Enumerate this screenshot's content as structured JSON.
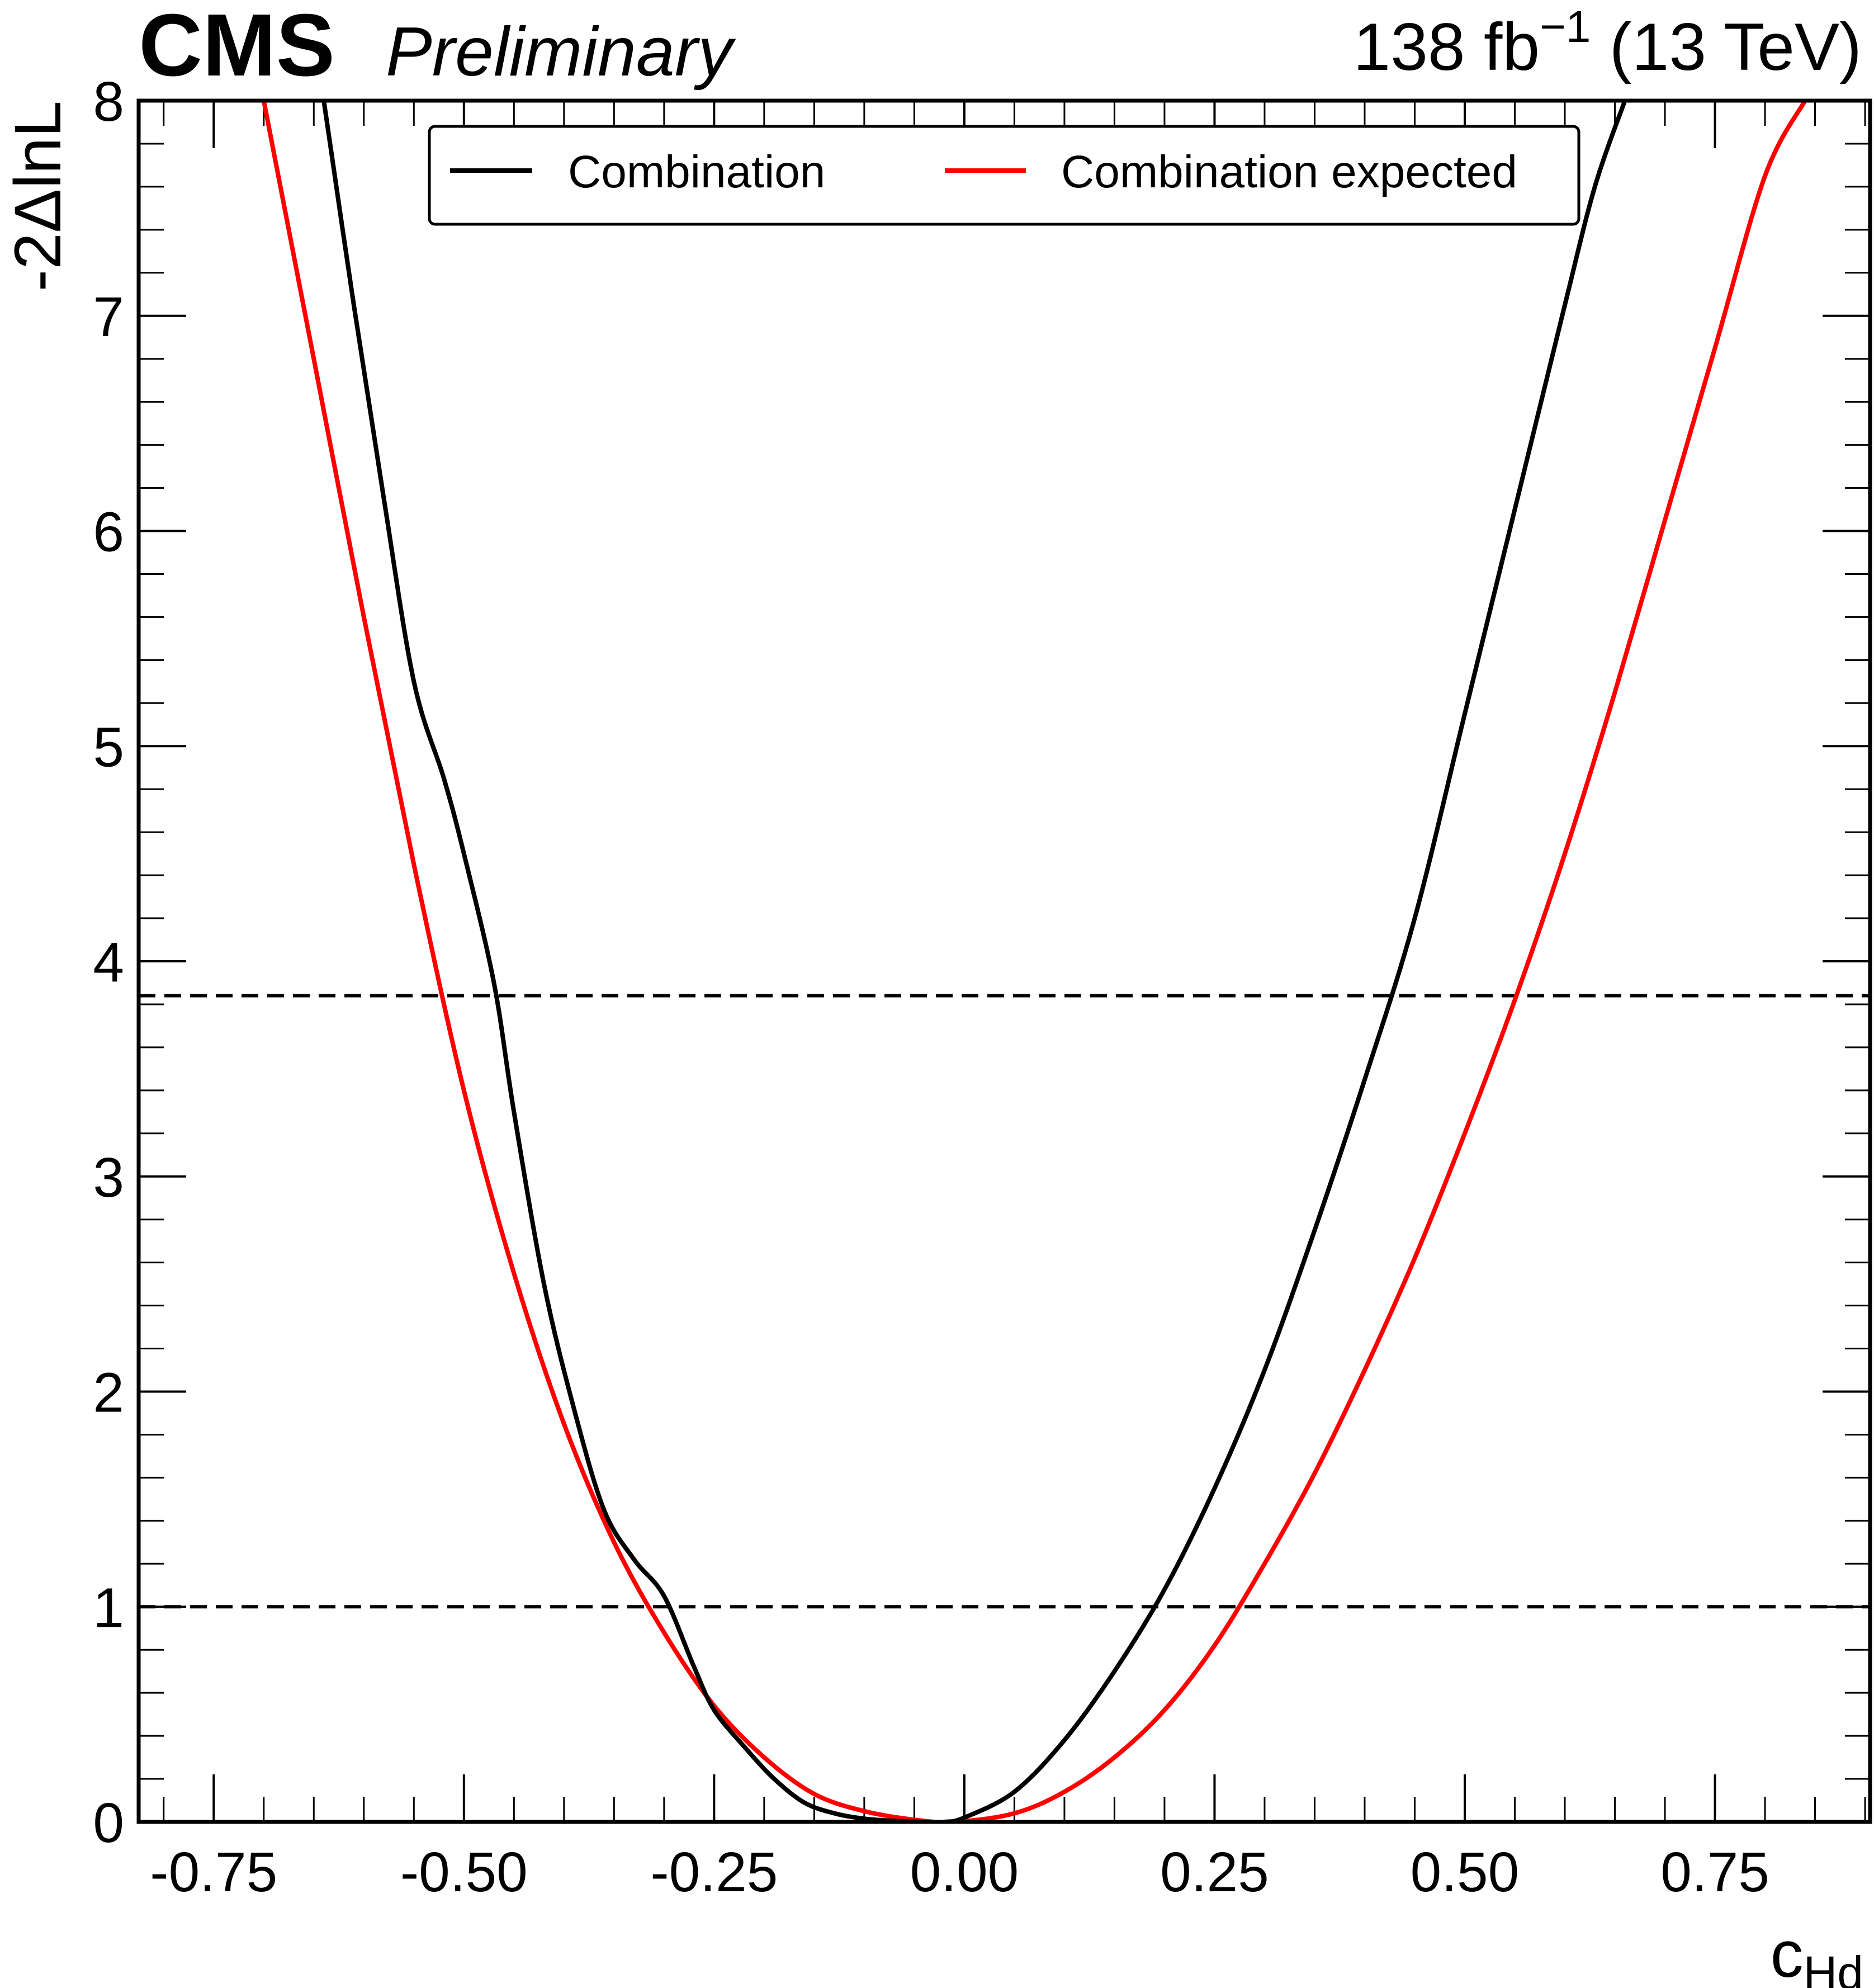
{
  "header": {
    "experiment": "CMS",
    "status": "Preliminary",
    "lumi_main": "138 fb",
    "lumi_exp": "−1",
    "lumi_energy": " (13 TeV)"
  },
  "axes": {
    "xlabel_main": "c",
    "xlabel_sub": "Hd",
    "ylabel": "-2ΔlnL"
  },
  "chart_data": {
    "type": "line",
    "title": "",
    "xlabel": "cHd",
    "ylabel": "-2ΔlnL",
    "xlim": [
      -0.825,
      0.905
    ],
    "ylim": [
      0,
      8
    ],
    "x_ticks": [
      -0.75,
      -0.5,
      -0.25,
      0.0,
      0.25,
      0.5,
      0.75
    ],
    "x_tick_labels": [
      "-0.75",
      "-0.50",
      "-0.25",
      "0.00",
      "0.25",
      "0.50",
      "0.75"
    ],
    "y_ticks": [
      0,
      1,
      2,
      3,
      4,
      5,
      6,
      7,
      8
    ],
    "y_tick_labels": [
      "0",
      "1",
      "2",
      "3",
      "4",
      "5",
      "6",
      "7",
      "8"
    ],
    "grid": false,
    "legend_position": "top-center",
    "reference_lines": [
      {
        "y": 1.0,
        "style": "dashed",
        "color": "#000000"
      },
      {
        "y": 3.84,
        "style": "dashed",
        "color": "#000000"
      }
    ],
    "series": [
      {
        "name": "Combination",
        "color": "#000000",
        "x": [
          -0.64,
          -0.61,
          -0.58,
          -0.55,
          -0.52,
          -0.5,
          -0.47,
          -0.45,
          -0.42,
          -0.39,
          -0.36,
          -0.33,
          -0.3,
          -0.27,
          -0.25,
          -0.22,
          -0.19,
          -0.16,
          -0.13,
          -0.1,
          -0.07,
          -0.04,
          -0.02,
          0.0,
          0.05,
          0.1,
          0.15,
          0.2,
          0.25,
          0.3,
          0.35,
          0.4,
          0.45,
          0.5,
          0.55,
          0.6,
          0.63,
          0.66
        ],
        "y": [
          8.0,
          7.05,
          6.15,
          5.3,
          4.85,
          4.5,
          3.9,
          3.3,
          2.5,
          1.92,
          1.45,
          1.22,
          1.05,
          0.72,
          0.52,
          0.35,
          0.2,
          0.09,
          0.04,
          0.015,
          0.005,
          0.0,
          0.0,
          0.02,
          0.14,
          0.38,
          0.7,
          1.08,
          1.55,
          2.1,
          2.75,
          3.45,
          4.2,
          5.15,
          6.1,
          7.05,
          7.6,
          8.0
        ]
      },
      {
        "name": "Combination expected",
        "color": "#ff0000",
        "x": [
          -0.7,
          -0.65,
          -0.6,
          -0.55,
          -0.5,
          -0.45,
          -0.4,
          -0.35,
          -0.3,
          -0.25,
          -0.2,
          -0.15,
          -0.1,
          -0.05,
          -0.01,
          0.05,
          0.1,
          0.15,
          0.2,
          0.25,
          0.3,
          0.35,
          0.4,
          0.45,
          0.5,
          0.55,
          0.6,
          0.65,
          0.7,
          0.75,
          0.8,
          0.84
        ],
        "y": [
          8.0,
          6.8,
          5.6,
          4.45,
          3.4,
          2.55,
          1.85,
          1.3,
          0.88,
          0.54,
          0.3,
          0.13,
          0.05,
          0.01,
          0.0,
          0.04,
          0.14,
          0.3,
          0.52,
          0.82,
          1.2,
          1.62,
          2.1,
          2.62,
          3.2,
          3.82,
          4.5,
          5.25,
          6.05,
          6.85,
          7.65,
          8.0
        ]
      }
    ]
  }
}
